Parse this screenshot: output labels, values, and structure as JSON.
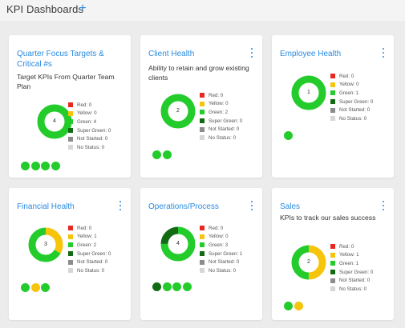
{
  "header": {
    "title": "KPI Dashboards",
    "add_label": "+"
  },
  "colors": {
    "red": "#e8271f",
    "yellow": "#f6c40a",
    "green": "#23cc2b",
    "super_green": "#126b12",
    "not_started": "#8c8c8c",
    "no_status": "#d6d6d6",
    "accent": "#2a8be0"
  },
  "cards": [
    {
      "title": "Quarter Focus Targets & Critical #s",
      "description": "Target KPIs From Quarter Team Plan",
      "total": "4",
      "has_menu": false,
      "counts": {
        "red": 0,
        "yellow": 0,
        "green": 4,
        "super_green": 0,
        "not_started": 0,
        "no_status": 0
      },
      "legend": [
        "Red: 0",
        "Yellow: 0",
        "Green: 4",
        "Super Green: 0",
        "Not Started: 0",
        "No Status: 0"
      ],
      "status_dots": [
        "green",
        "green",
        "green",
        "green"
      ]
    },
    {
      "title": "Client Health",
      "description": "Ability to retain and grow existing clients",
      "total": "2",
      "has_menu": true,
      "counts": {
        "red": 0,
        "yellow": 0,
        "green": 2,
        "super_green": 0,
        "not_started": 0,
        "no_status": 0
      },
      "legend": [
        "Red: 0",
        "Yellow: 0",
        "Green: 2",
        "Super Green: 0",
        "Not Started: 0",
        "No Status: 0"
      ],
      "status_dots": [
        "green",
        "green"
      ]
    },
    {
      "title": "Employee Health",
      "description": "",
      "total": "1",
      "has_menu": true,
      "counts": {
        "red": 0,
        "yellow": 0,
        "green": 1,
        "super_green": 0,
        "not_started": 0,
        "no_status": 0
      },
      "legend": [
        "Red: 0",
        "Yellow: 0",
        "Green: 1",
        "Super Green: 0",
        "Not Started: 0",
        "No Status: 0"
      ],
      "status_dots": [
        "green"
      ]
    },
    {
      "title": "Financial Health",
      "description": "",
      "total": "3",
      "has_menu": true,
      "counts": {
        "red": 0,
        "yellow": 1,
        "green": 2,
        "super_green": 0,
        "not_started": 0,
        "no_status": 0
      },
      "legend": [
        "Red: 0",
        "Yellow: 1",
        "Green: 2",
        "Super Green: 0",
        "Not Started: 0",
        "No Status: 0"
      ],
      "status_dots": [
        "green",
        "yellow",
        "green"
      ]
    },
    {
      "title": "Operations/Process",
      "description": "",
      "total": "4",
      "has_menu": true,
      "counts": {
        "red": 0,
        "yellow": 0,
        "green": 3,
        "super_green": 1,
        "not_started": 0,
        "no_status": 0
      },
      "legend": [
        "Red: 0",
        "Yellow: 0",
        "Green: 3",
        "Super Green: 1",
        "Not Started: 0",
        "No Status: 0"
      ],
      "status_dots": [
        "super_green",
        "green",
        "green",
        "green"
      ]
    },
    {
      "title": "Sales",
      "description": "KPIs to track our sales success",
      "total": "2",
      "has_menu": true,
      "counts": {
        "red": 0,
        "yellow": 1,
        "green": 1,
        "super_green": 0,
        "not_started": 0,
        "no_status": 0
      },
      "legend": [
        "Red: 0",
        "Yellow: 1",
        "Green: 1",
        "Super Green: 0",
        "Not Started: 0",
        "No Status: 0"
      ],
      "status_dots": [
        "green",
        "yellow"
      ]
    }
  ]
}
